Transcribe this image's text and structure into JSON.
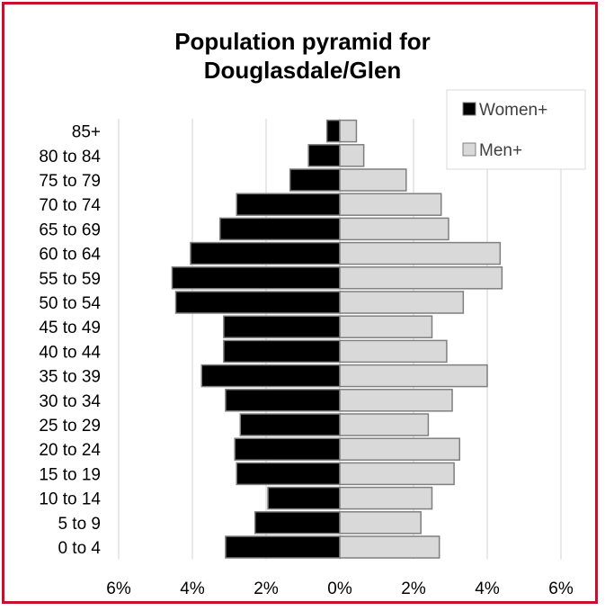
{
  "chart_data": {
    "type": "bar",
    "orientation": "horizontal-diverging",
    "title_lines": [
      "Population pyramid for",
      "Douglasdale/Glen"
    ],
    "categories": [
      "0 to 4",
      "5 to 9",
      "10 to 14",
      "15 to 19",
      "20 to 24",
      "25 to 29",
      "30 to 34",
      "35 to 39",
      "40 to 44",
      "45 to 49",
      "50 to 54",
      "55 to 59",
      "60 to 64",
      "65 to 69",
      "70 to 74",
      "75 to 79",
      "80 to 84",
      "85+"
    ],
    "series": [
      {
        "name": "Women+",
        "color": "#000000",
        "values": [
          3.1,
          2.3,
          1.95,
          2.8,
          2.85,
          2.7,
          3.1,
          3.75,
          3.15,
          3.15,
          4.45,
          4.55,
          4.05,
          3.25,
          2.8,
          1.35,
          0.85,
          0.35
        ]
      },
      {
        "name": "Men+",
        "color": "#d9d9d9",
        "values": [
          2.7,
          2.2,
          2.5,
          3.1,
          3.25,
          2.4,
          3.05,
          4.0,
          2.9,
          2.5,
          3.35,
          4.4,
          4.35,
          2.95,
          2.75,
          1.8,
          0.65,
          0.45
        ]
      }
    ],
    "xlim": [
      -6,
      6
    ],
    "xticks": [
      -6,
      -4,
      -2,
      0,
      2,
      4,
      6
    ],
    "xtick_labels": [
      "6%",
      "4%",
      "2%",
      "0%",
      "2%",
      "4%",
      "6%"
    ],
    "grid": true,
    "legend_position": "top-right"
  }
}
